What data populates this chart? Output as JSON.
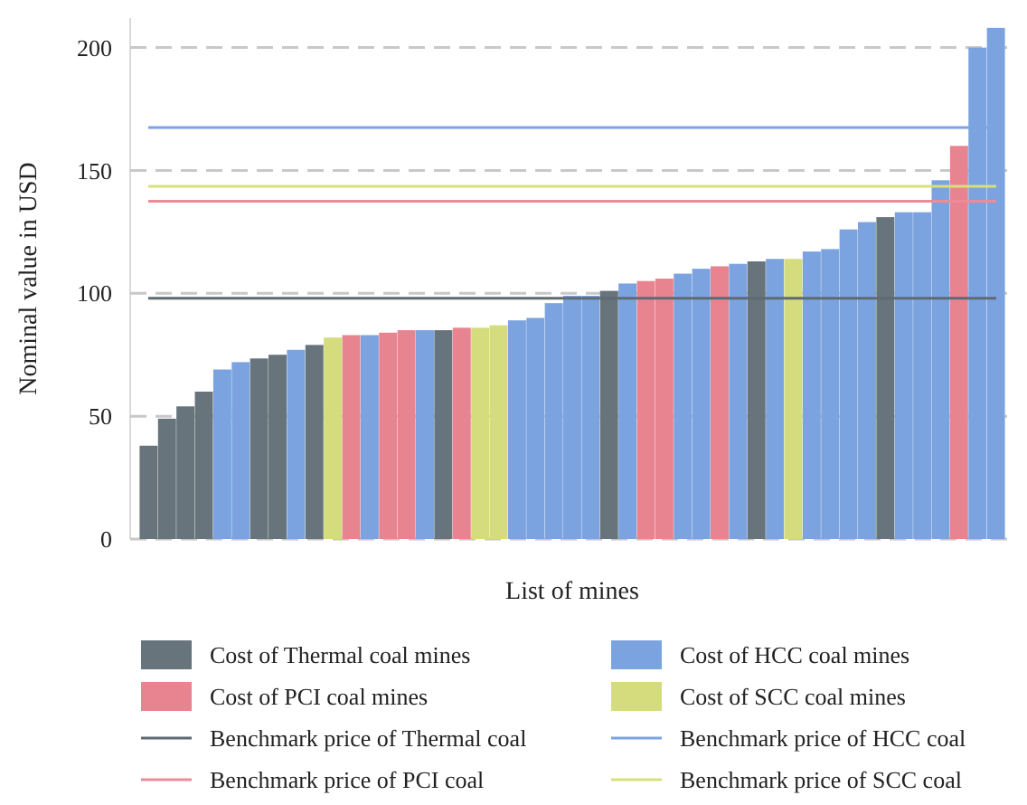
{
  "chart_data": {
    "type": "bar",
    "xlabel": "List of mines",
    "ylabel": "Nominal value in USD",
    "categories": [
      null,
      null,
      null,
      null,
      null,
      null,
      null,
      null,
      null,
      null,
      null,
      null,
      null,
      null,
      null,
      null,
      null,
      null,
      null,
      null,
      null,
      null,
      null,
      null,
      null,
      null,
      null,
      null,
      null,
      null,
      null,
      null,
      null,
      null,
      null,
      null,
      null,
      null,
      null,
      null,
      null,
      null,
      null,
      null,
      null,
      null,
      null
    ],
    "series": [
      {
        "name": "Cost of Thermal coal mines",
        "color": "#67747b",
        "values": [
          38,
          49,
          54,
          60,
          null,
          null,
          73.5,
          75,
          null,
          79,
          null,
          null,
          null,
          null,
          null,
          null,
          85,
          null,
          null,
          null,
          null,
          null,
          null,
          null,
          null,
          101,
          null,
          null,
          null,
          null,
          null,
          null,
          null,
          113,
          null,
          null,
          null,
          null,
          null,
          null,
          131,
          null,
          null,
          null,
          null,
          null,
          null
        ]
      },
      {
        "name": "Cost of HCC coal mines",
        "color": "#7ba3e0",
        "values": [
          null,
          null,
          null,
          null,
          69,
          72,
          null,
          null,
          77,
          null,
          null,
          null,
          83,
          null,
          null,
          85,
          null,
          null,
          null,
          null,
          89,
          90,
          96,
          99,
          99,
          null,
          104,
          null,
          null,
          108,
          110,
          null,
          112,
          null,
          114,
          null,
          117,
          118,
          126,
          129,
          null,
          133,
          133,
          146,
          null,
          200,
          208
        ]
      },
      {
        "name": "Cost of PCI coal mines",
        "color": "#e8848f",
        "values": [
          null,
          null,
          null,
          null,
          null,
          null,
          null,
          null,
          null,
          null,
          null,
          83,
          null,
          84,
          85,
          null,
          null,
          86,
          null,
          null,
          null,
          null,
          null,
          null,
          null,
          null,
          null,
          105,
          106,
          null,
          null,
          111,
          null,
          null,
          null,
          null,
          null,
          null,
          null,
          null,
          null,
          null,
          null,
          null,
          160,
          null,
          null
        ]
      },
      {
        "name": "Cost of SCC coal mines",
        "color": "#d5dc7e",
        "values": [
          null,
          null,
          null,
          null,
          null,
          null,
          null,
          null,
          null,
          null,
          82,
          null,
          null,
          null,
          null,
          null,
          null,
          null,
          86,
          87,
          null,
          null,
          null,
          null,
          null,
          null,
          null,
          null,
          null,
          null,
          null,
          null,
          null,
          null,
          null,
          114,
          null,
          null,
          null,
          null,
          null,
          null,
          null,
          null,
          null,
          null,
          null
        ]
      }
    ],
    "ref_lines": [
      {
        "axis": "y",
        "value": 98,
        "label": "Benchmark price of Thermal coal",
        "color": "#5f6b72"
      },
      {
        "axis": "y",
        "value": 167.5,
        "label": "Benchmark price of HCC coal",
        "color": "#7da3e0"
      },
      {
        "axis": "y",
        "value": 137.5,
        "label": "Benchmark price of PCI coal",
        "color": "#ef8a98"
      },
      {
        "axis": "y",
        "value": 143.5,
        "label": "Benchmark price of SCC coal",
        "color": "#d8e07a"
      }
    ],
    "ylim": [
      0,
      212
    ],
    "yticks": [
      0,
      50,
      100,
      150,
      200
    ],
    "grid": "y",
    "legend": "bottom"
  }
}
